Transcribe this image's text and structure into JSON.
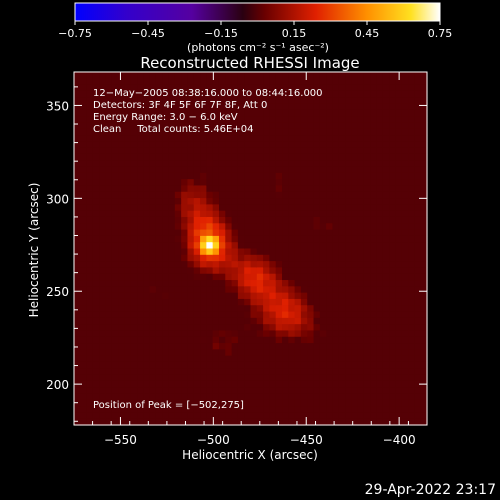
{
  "chart_data": {
    "type": "heatmap",
    "title": "Reconstructed RHESSI Image",
    "xlabel": "Heliocentric X (arcsec)",
    "ylabel": "Heliocentric Y (arcsec)",
    "xlim": [
      -575,
      -385
    ],
    "ylim": [
      178,
      368
    ],
    "xticks": [
      -550,
      -500,
      -450,
      -400
    ],
    "yticks": [
      200,
      250,
      300,
      350
    ],
    "xtick_labels": [
      "−550",
      "−500",
      "−450",
      "−400"
    ],
    "ytick_labels": [
      "200",
      "250",
      "300",
      "350"
    ],
    "colorbar": {
      "range": [
        -0.75,
        0.75
      ],
      "ticks": [
        -0.75,
        -0.45,
        -0.15,
        0.15,
        0.45,
        0.75
      ],
      "tick_labels": [
        "−0.75",
        "−0.45",
        "−0.15",
        "0.15",
        "0.45",
        "0.75"
      ],
      "units_label": "(photons cm⁻² s⁻¹ asec⁻²)"
    },
    "annotations": [
      "12−May−2005 08:38:16.000 to 08:44:16.000",
      "Detectors: 3F 4F 5F 6F 7F 8F, Att 0",
      "Energy Range: 3.0 − 6.0 keV",
      "Clean     Total counts: 5.46E+04"
    ],
    "peak_label": "Position of Peak = [−502,275]",
    "peak": {
      "x": -502,
      "y": 275,
      "value": 0.75
    },
    "sources": [
      {
        "x": -502,
        "y": 276,
        "sx": 10,
        "sy": 12,
        "value": 0.55
      },
      {
        "x": -478,
        "y": 258,
        "sx": 11,
        "sy": 11,
        "value": 0.42
      },
      {
        "x": -460,
        "y": 238,
        "sx": 12,
        "sy": 12,
        "value": 0.42
      },
      {
        "x": -512,
        "y": 300,
        "sx": 11,
        "sy": 12,
        "value": 0.3
      },
      {
        "x": -498,
        "y": 325,
        "sx": 10,
        "sy": 9,
        "value": 0.18
      },
      {
        "x": -465,
        "y": 308,
        "sx": 12,
        "sy": 12,
        "value": 0.22
      },
      {
        "x": -440,
        "y": 285,
        "sx": 12,
        "sy": 12,
        "value": 0.22
      },
      {
        "x": -530,
        "y": 250,
        "sx": 14,
        "sy": 14,
        "value": 0.2
      },
      {
        "x": -495,
        "y": 222,
        "sx": 14,
        "sy": 12,
        "value": 0.24
      },
      {
        "x": -438,
        "y": 222,
        "sx": 11,
        "sy": 11,
        "value": 0.15
      },
      {
        "x": -540,
        "y": 215,
        "sx": 13,
        "sy": 13,
        "value": 0.14
      },
      {
        "x": -425,
        "y": 320,
        "sx": 10,
        "sy": 9,
        "value": 0.1
      }
    ],
    "background_value": -0.22,
    "negative_lobes": [
      {
        "x": -415,
        "y": 335,
        "s": 15,
        "value": -0.3
      },
      {
        "x": -400,
        "y": 260,
        "s": 12,
        "value": -0.22
      },
      {
        "x": -560,
        "y": 190,
        "s": 16,
        "value": -0.28
      },
      {
        "x": -565,
        "y": 330,
        "s": 14,
        "value": -0.15
      }
    ],
    "grid": false
  },
  "footer": {
    "timestamp": "29-Apr-2022 23:17"
  }
}
